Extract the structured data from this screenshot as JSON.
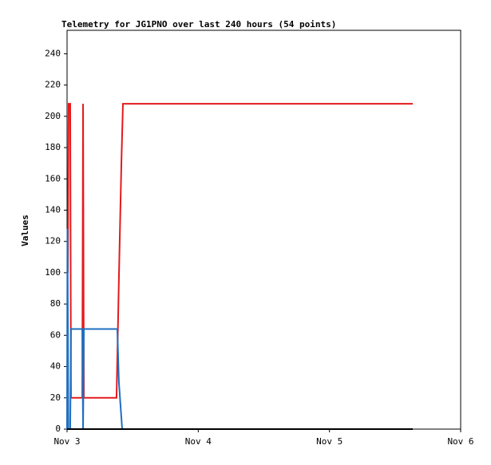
{
  "chart_data": {
    "type": "line",
    "title": "Telemetry for JG1PNO over last 240 hours (54 points)",
    "ylabel": "Values",
    "xlim": [
      0,
      3
    ],
    "xticks": [
      {
        "value": 0,
        "label": "Nov 3"
      },
      {
        "value": 1,
        "label": "Nov 4"
      },
      {
        "value": 2,
        "label": "Nov 5"
      },
      {
        "value": 3,
        "label": "Nov 6"
      }
    ],
    "ylim": [
      0,
      255
    ],
    "yticks": [
      0,
      20,
      40,
      60,
      80,
      100,
      120,
      140,
      160,
      180,
      200,
      220,
      240
    ],
    "series": [
      {
        "color": "#e41a1c",
        "x": [
          0.006,
          0.012,
          0.024,
          0.03,
          0.116,
          0.122,
          0.128,
          0.377,
          0.396,
          0.414,
          0.426,
          2.635
        ],
        "values": [
          100,
          208,
          208,
          20,
          20,
          208,
          20,
          20,
          100,
          170,
          208,
          208
        ]
      },
      {
        "color": "#1f6fc0",
        "x": [
          0,
          0.003,
          0.01,
          0.024,
          0.03,
          0.116,
          0.122,
          0.128,
          0.383,
          0.395,
          0.42,
          2.635
        ],
        "values": [
          0,
          128,
          0,
          0,
          64,
          64,
          0,
          64,
          64,
          30,
          0,
          0
        ]
      },
      {
        "color": "#000000",
        "x": [
          0,
          2.635
        ],
        "values": [
          0,
          0
        ]
      }
    ]
  }
}
